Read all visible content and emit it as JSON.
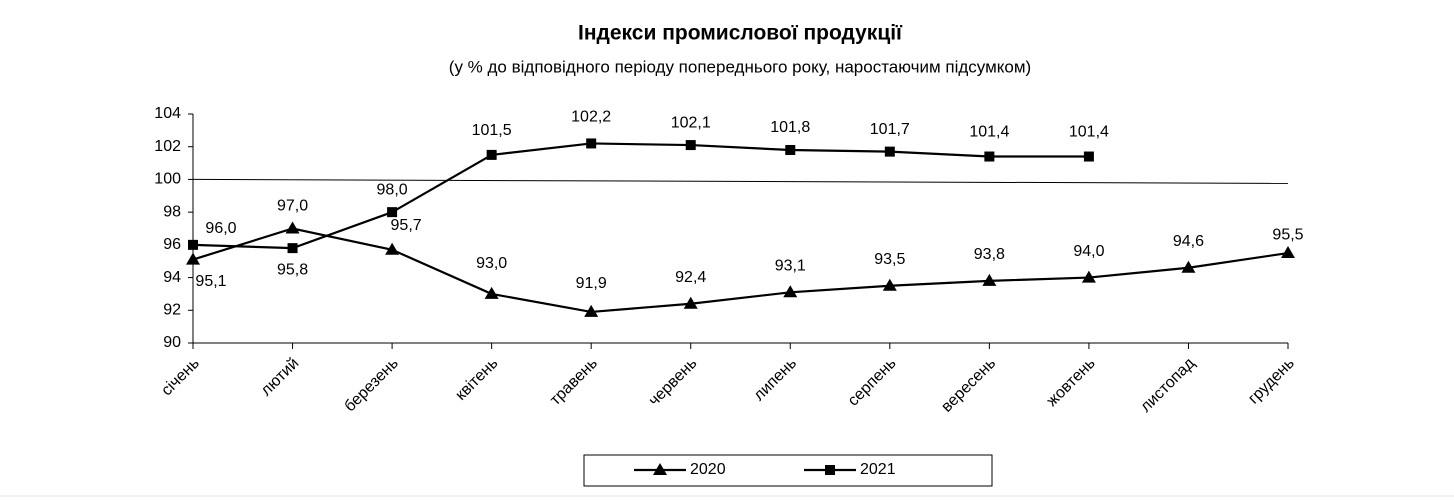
{
  "chart_data": {
    "type": "line",
    "title": "Індекси промислової продукції",
    "subtitle": "(у % до відповідного періоду попереднього року, наростаючим підсумком)",
    "categories": [
      "січень",
      "лютий",
      "березень",
      "квітень",
      "травень",
      "червень",
      "липень",
      "серпень",
      "вересень",
      "жовтень",
      "листопад",
      "грудень"
    ],
    "series": [
      {
        "name": "2020",
        "color": "#000000",
        "marker": "triangle",
        "values": [
          95.1,
          97.0,
          95.7,
          93.0,
          91.9,
          92.4,
          93.1,
          93.5,
          93.8,
          94.0,
          94.6,
          95.5
        ],
        "value_labels": [
          "95,1",
          "97,0",
          "95,7",
          "93,0",
          "91,9",
          "92,4",
          "93,1",
          "93,5",
          "93,8",
          "94,0",
          "94,6",
          "95,5"
        ]
      },
      {
        "name": "2021",
        "color": "#000000",
        "marker": "square",
        "values": [
          96.0,
          95.8,
          98.0,
          101.5,
          102.2,
          102.1,
          101.8,
          101.7,
          101.4,
          101.4,
          null,
          null
        ],
        "value_labels": [
          "96,0",
          "95,8",
          "98,0",
          "101,5",
          "102,2",
          "102,1",
          "101,8",
          "101,7",
          "101,4",
          "101,4",
          null,
          null
        ]
      }
    ],
    "ylim": [
      90,
      104
    ],
    "yticks": [
      90,
      92,
      94,
      96,
      98,
      100,
      102,
      104
    ],
    "reference_line": 100,
    "legend": "bottom"
  }
}
